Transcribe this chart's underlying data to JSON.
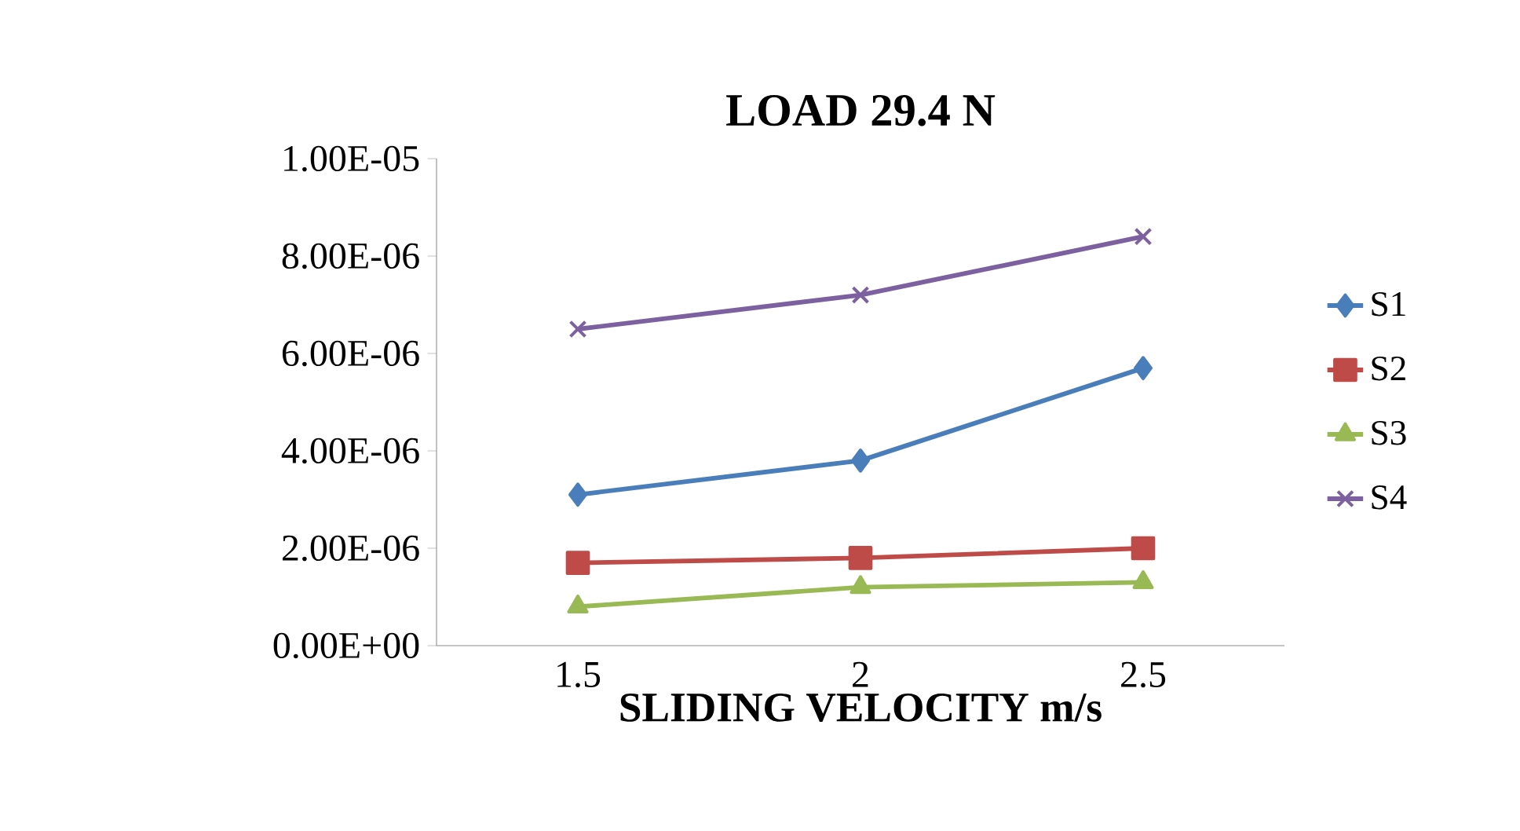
{
  "chart_data": {
    "type": "line",
    "title": "LOAD 29.4 N",
    "xlabel": "SLIDING VELOCITY m/s",
    "categories": [
      "1.5",
      "2",
      "2.5"
    ],
    "series": [
      {
        "name": "S1",
        "color": "#4a7ebb",
        "marker": "diamond",
        "values": [
          3.1e-06,
          3.8e-06,
          5.7e-06
        ]
      },
      {
        "name": "S2",
        "color": "#be4b48",
        "marker": "square",
        "values": [
          1.7e-06,
          1.8e-06,
          2e-06
        ]
      },
      {
        "name": "S3",
        "color": "#98b954",
        "marker": "triangle",
        "values": [
          8e-07,
          1.2e-06,
          1.3e-06
        ]
      },
      {
        "name": "S4",
        "color": "#7d60a0",
        "marker": "cross",
        "values": [
          6.5e-06,
          7.2e-06,
          8.4e-06
        ]
      }
    ],
    "ylim": [
      0,
      1e-05
    ],
    "yticks": [
      {
        "value": 0,
        "label": "0.00E+00"
      },
      {
        "value": 2e-06,
        "label": "2.00E-06"
      },
      {
        "value": 4e-06,
        "label": "4.00E-06"
      },
      {
        "value": 6e-06,
        "label": "6.00E-06"
      },
      {
        "value": 8e-06,
        "label": "8.00E-06"
      },
      {
        "value": 1e-05,
        "label": "1.00E-05"
      }
    ],
    "grid": false,
    "legend": "right"
  }
}
